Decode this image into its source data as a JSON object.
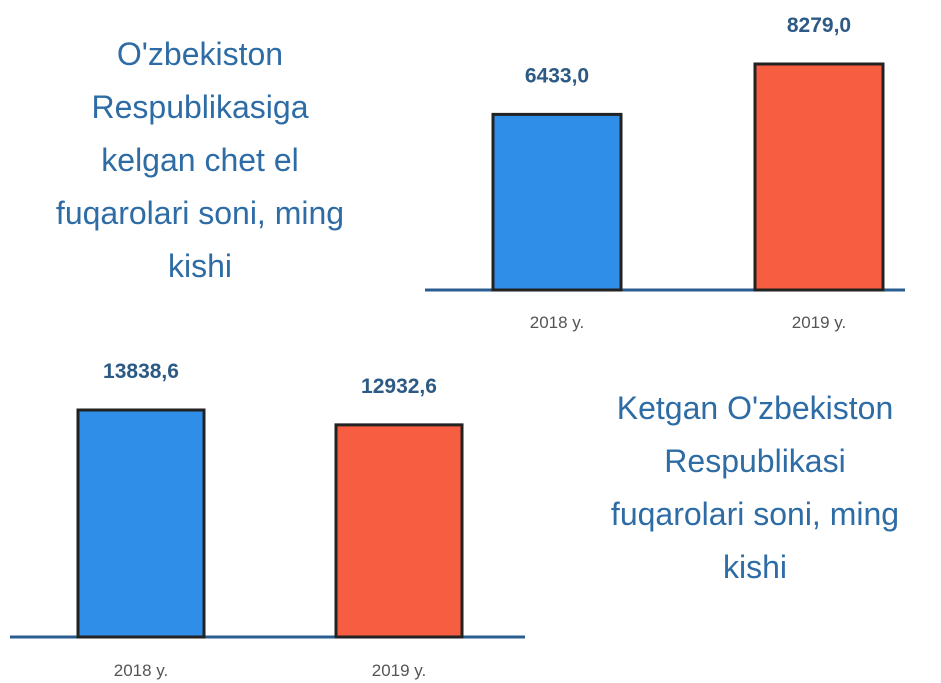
{
  "chart_data": [
    {
      "type": "bar",
      "title": "O'zbekiston Respublikasiga kelgan chet el fuqarolari soni, ming kishi",
      "categories": [
        "2018 y.",
        "2019 y."
      ],
      "values": [
        6433.0,
        8279.0
      ],
      "value_labels": [
        "6433,0",
        "8279,0"
      ],
      "colors": [
        "#2f8fe8",
        "#f75d40"
      ]
    },
    {
      "type": "bar",
      "title": "Ketgan O'zbekiston Respublikasi fuqarolari soni, ming kishi",
      "categories": [
        "2018 y.",
        "2019 y."
      ],
      "values": [
        13838.6,
        12932.6
      ],
      "value_labels": [
        "13838,6",
        "12932,6"
      ],
      "colors": [
        "#2f8fe8",
        "#f75d40"
      ]
    }
  ]
}
